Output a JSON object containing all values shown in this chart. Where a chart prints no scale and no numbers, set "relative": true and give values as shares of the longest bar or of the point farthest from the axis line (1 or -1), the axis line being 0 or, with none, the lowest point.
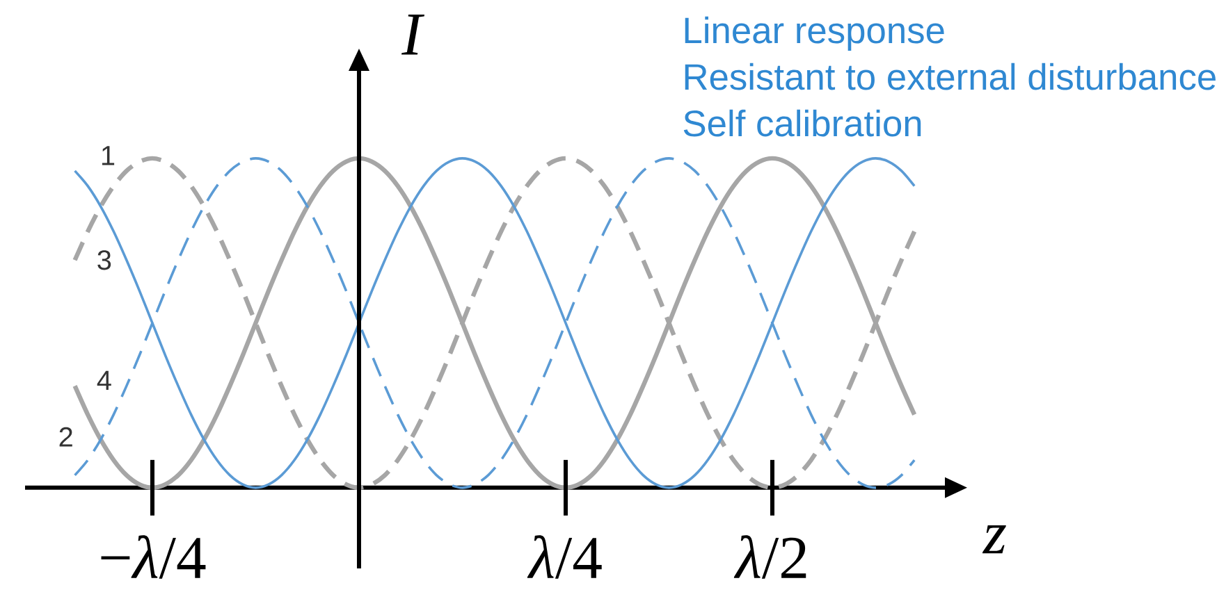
{
  "chart_data": {
    "type": "line",
    "relative": true,
    "xlabel": "z",
    "ylabel": "I",
    "annotations": [
      "Linear response",
      "Resistant to external disturbance",
      "Self calibration"
    ],
    "categories": [
      null,
      null,
      null,
      null,
      null,
      null,
      "−*λ*/4",
      null,
      null,
      null,
      null,
      null,
      null,
      null,
      null,
      null,
      null,
      null,
      null,
      null,
      null,
      null,
      null,
      null,
      null,
      null,
      null,
      null,
      null,
      null,
      null,
      null,
      null,
      null,
      null,
      null,
      null,
      null,
      "*λ*/4",
      null,
      null,
      null,
      null,
      null,
      null,
      null,
      null,
      null,
      null,
      null,
      null,
      null,
      null,
      null,
      "*λ*/2",
      null,
      null,
      null,
      null,
      null,
      null,
      null,
      null,
      null,
      null,
      null
    ],
    "series": [
      {
        "name": "1",
        "color": "#a6a6a6",
        "line_style": "dashed",
        "values": [
          0.691,
          0.778,
          0.854,
          0.916,
          0.962,
          0.99,
          1,
          0.99,
          0.962,
          0.916,
          0.854,
          0.778,
          0.691,
          0.598,
          0.5,
          0.402,
          0.309,
          0.222,
          0.146,
          0.084,
          0.038,
          0.01,
          0,
          0.01,
          0.038,
          0.084,
          0.146,
          0.222,
          0.309,
          0.402,
          0.5,
          0.598,
          0.691,
          0.778,
          0.854,
          0.916,
          0.962,
          0.99,
          1,
          0.99,
          0.962,
          0.916,
          0.854,
          0.778,
          0.691,
          0.598,
          0.5,
          0.402,
          0.309,
          0.222,
          0.146,
          0.084,
          0.038,
          0.01,
          0,
          0.01,
          0.038,
          0.084,
          0.146,
          0.222,
          0.309,
          0.402,
          0.5,
          0.598,
          0.691,
          0.778
        ]
      },
      {
        "name": "2",
        "color": "#a6a6a6",
        "line_style": "solid",
        "values": [
          0.309,
          0.222,
          0.146,
          0.084,
          0.038,
          0.01,
          0,
          0.01,
          0.038,
          0.084,
          0.146,
          0.222,
          0.309,
          0.402,
          0.5,
          0.598,
          0.691,
          0.778,
          0.854,
          0.916,
          0.962,
          0.99,
          1,
          0.99,
          0.962,
          0.916,
          0.854,
          0.778,
          0.691,
          0.598,
          0.5,
          0.402,
          0.309,
          0.222,
          0.146,
          0.084,
          0.038,
          0.01,
          0,
          0.01,
          0.038,
          0.084,
          0.146,
          0.222,
          0.309,
          0.402,
          0.5,
          0.598,
          0.691,
          0.778,
          0.854,
          0.916,
          0.962,
          0.99,
          1,
          0.99,
          0.962,
          0.916,
          0.854,
          0.778,
          0.691,
          0.598,
          0.5,
          0.402,
          0.309,
          0.222
        ]
      },
      {
        "name": "3",
        "color": "#5b9bd5",
        "line_style": "solid",
        "values": [
          0.962,
          0.916,
          0.854,
          0.778,
          0.691,
          0.598,
          0.5,
          0.402,
          0.309,
          0.222,
          0.146,
          0.084,
          0.038,
          0.01,
          0,
          0.01,
          0.038,
          0.084,
          0.146,
          0.222,
          0.309,
          0.402,
          0.5,
          0.598,
          0.691,
          0.778,
          0.854,
          0.916,
          0.962,
          0.99,
          1,
          0.99,
          0.962,
          0.916,
          0.854,
          0.778,
          0.691,
          0.598,
          0.5,
          0.402,
          0.309,
          0.222,
          0.146,
          0.084,
          0.038,
          0.01,
          0,
          0.01,
          0.038,
          0.084,
          0.146,
          0.222,
          0.309,
          0.402,
          0.5,
          0.598,
          0.691,
          0.778,
          0.854,
          0.916,
          0.962,
          0.99,
          1,
          0.99,
          0.962,
          0.916
        ]
      },
      {
        "name": "4",
        "color": "#5b9bd5",
        "line_style": "dashed",
        "values": [
          0.038,
          0.084,
          0.146,
          0.222,
          0.309,
          0.402,
          0.5,
          0.598,
          0.691,
          0.778,
          0.854,
          0.916,
          0.962,
          0.99,
          1,
          0.99,
          0.962,
          0.916,
          0.854,
          0.778,
          0.691,
          0.598,
          0.5,
          0.402,
          0.309,
          0.222,
          0.146,
          0.084,
          0.038,
          0.01,
          0,
          0.01,
          0.038,
          0.084,
          0.146,
          0.222,
          0.309,
          0.402,
          0.5,
          0.598,
          0.691,
          0.778,
          0.854,
          0.916,
          0.962,
          0.99,
          1,
          0.99,
          0.962,
          0.916,
          0.854,
          0.778,
          0.691,
          0.598,
          0.5,
          0.402,
          0.309,
          0.222,
          0.146,
          0.084,
          0.038,
          0.01,
          0,
          0.01,
          0.038,
          0.084
        ]
      }
    ]
  }
}
